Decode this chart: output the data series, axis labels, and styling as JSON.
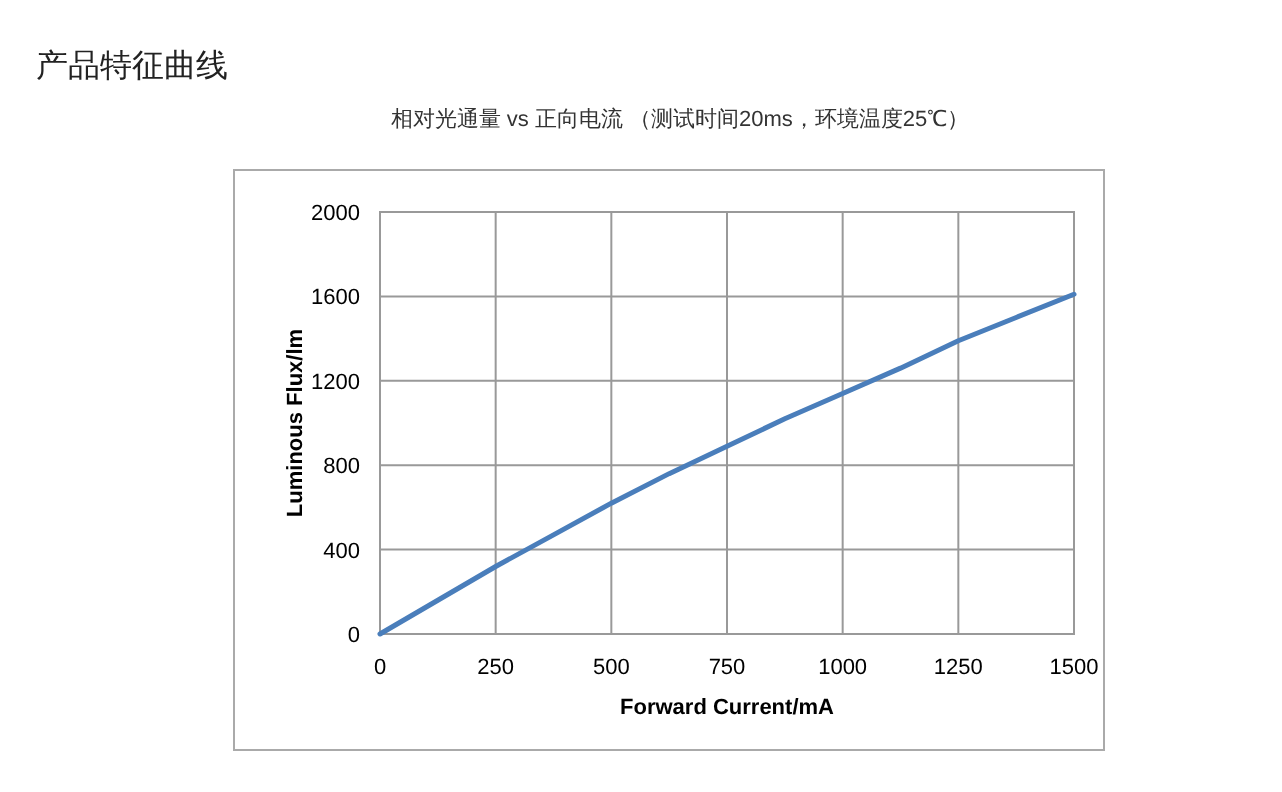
{
  "chart_data": {
    "type": "line",
    "title": "产品特征曲线",
    "subtitle": "相对光通量 vs 正向电流 （测试时间20ms，环境温度25℃）",
    "xlabel": "Forward Current/mA",
    "ylabel": "Luminous Flux/lm",
    "x": [
      0,
      125,
      250,
      375,
      500,
      625,
      750,
      875,
      1000,
      1125,
      1250,
      1375,
      1500
    ],
    "series": [
      {
        "color": "#4a7ebb",
        "values": [
          0,
          160,
          320,
          470,
          620,
          760,
          890,
          1020,
          1140,
          1260,
          1390,
          1500,
          1610
        ]
      }
    ],
    "xlim": [
      0,
      1500
    ],
    "xticks": [
      0,
      250,
      500,
      750,
      1000,
      1250,
      1500
    ],
    "ylim": [
      0,
      2000
    ],
    "yticks": [
      0,
      400,
      800,
      1200,
      1600,
      2000
    ],
    "grid": true,
    "marker": "none",
    "line_style": "solid"
  }
}
